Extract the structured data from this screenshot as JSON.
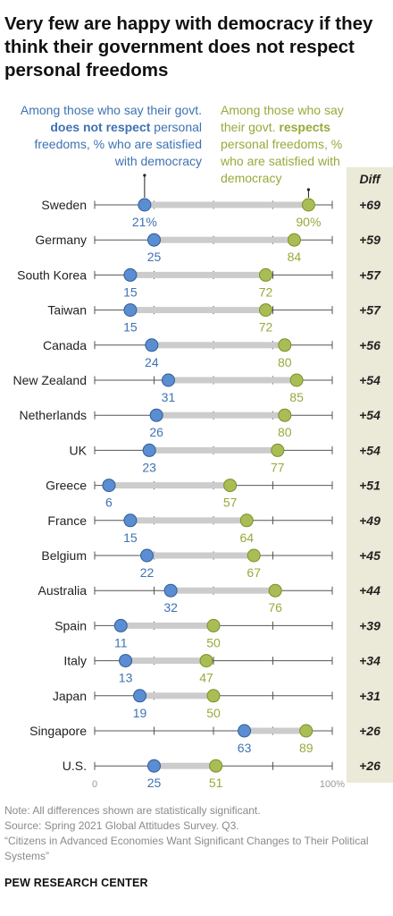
{
  "title": "Very few are happy with democracy if they think their government does not respect personal freedoms",
  "legend": {
    "blue_pre": "Among those who say their govt. ",
    "blue_bold": "does not respect",
    "blue_post": " personal freedoms, % who are satisfied with democracy",
    "green_pre": "Among those who say their govt. ",
    "green_bold": "respects",
    "green_post": " personal freedoms, % who are satisfied with democracy"
  },
  "diff_header": "Diff",
  "colors": {
    "not_respect": "#5b8dd3",
    "respects": "#a9bd55",
    "not_respect_text": "#3e72b3",
    "respects_text": "#98a93a",
    "diff_band": "#ebe9d7",
    "connector": "#cccccc"
  },
  "chart_data": {
    "type": "dot",
    "title": "Very few are happy with democracy if they think their government does not respect personal freedoms",
    "xlim": [
      0,
      100
    ],
    "x_tick_labels": {
      "min": "0",
      "max": "100%"
    },
    "first_row_suffix": "%",
    "categories": [
      "Sweden",
      "Germany",
      "South Korea",
      "Taiwan",
      "Canada",
      "New Zealand",
      "Netherlands",
      "UK",
      "Greece",
      "France",
      "Belgium",
      "Australia",
      "Spain",
      "Italy",
      "Japan",
      "Singapore",
      "U.S."
    ],
    "series": [
      {
        "name": "Among those who say their govt. does not respect personal freedoms, % who are satisfied with democracy",
        "values": [
          21,
          25,
          15,
          15,
          24,
          31,
          26,
          23,
          6,
          15,
          22,
          32,
          11,
          13,
          19,
          63,
          25
        ]
      },
      {
        "name": "Among those who say their govt. respects personal freedoms, % who are satisfied with democracy",
        "values": [
          90,
          84,
          72,
          72,
          80,
          85,
          80,
          77,
          57,
          64,
          67,
          76,
          50,
          47,
          50,
          89,
          51
        ]
      }
    ],
    "diff": [
      "+69",
      "+59",
      "+57",
      "+57",
      "+56",
      "+54",
      "+54",
      "+54",
      "+51",
      "+49",
      "+45",
      "+44",
      "+39",
      "+34",
      "+31",
      "+26",
      "+26"
    ]
  },
  "notes": {
    "note": "Note: All differences shown are statistically significant.",
    "source": "Source: Spring 2021 Global Attitudes Survey. Q3.",
    "report": "“Citizens in Advanced Economies Want Significant Changes to Their Political Systems”"
  },
  "credit": "PEW RESEARCH CENTER"
}
